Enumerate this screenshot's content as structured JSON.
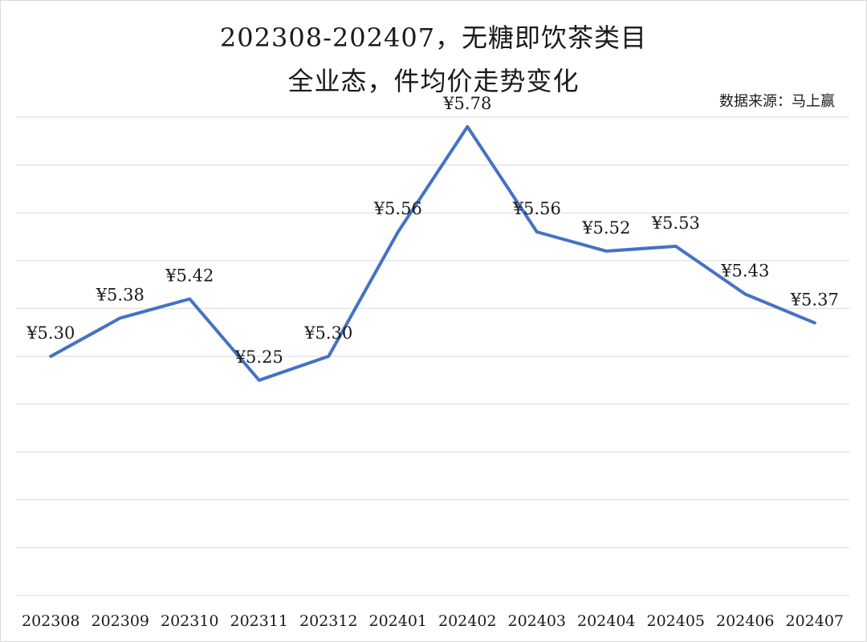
{
  "title_line1": "202308-202407，无糖即饮茶类目",
  "title_line2": "全业态，件均价走势变化",
  "source": "数据来源：马上赢",
  "chart_data": {
    "type": "line",
    "categories": [
      "202308",
      "202309",
      "202310",
      "202311",
      "202312",
      "202401",
      "202402",
      "202403",
      "202404",
      "202405",
      "202406",
      "202407"
    ],
    "series": [
      {
        "values": [
          5.3,
          5.38,
          5.42,
          5.25,
          5.3,
          5.56,
          5.78,
          5.56,
          5.52,
          5.53,
          5.43,
          5.37
        ],
        "labels": [
          "¥5.30",
          "¥5.38",
          "¥5.42",
          "¥5.25",
          "¥5.30",
          "¥5.56",
          "¥5.78",
          "¥5.56",
          "¥5.52",
          "¥5.53",
          "¥5.43",
          "¥5.37"
        ],
        "color": "#4472c4"
      }
    ],
    "ylim": [
      4.8,
      5.8
    ],
    "gridlines": [
      4.8,
      4.9,
      5.0,
      5.1,
      5.2,
      5.3,
      5.4,
      5.5,
      5.6,
      5.7,
      5.8
    ],
    "grid": true,
    "y_axis_labels_shown": false,
    "legend": "none"
  }
}
